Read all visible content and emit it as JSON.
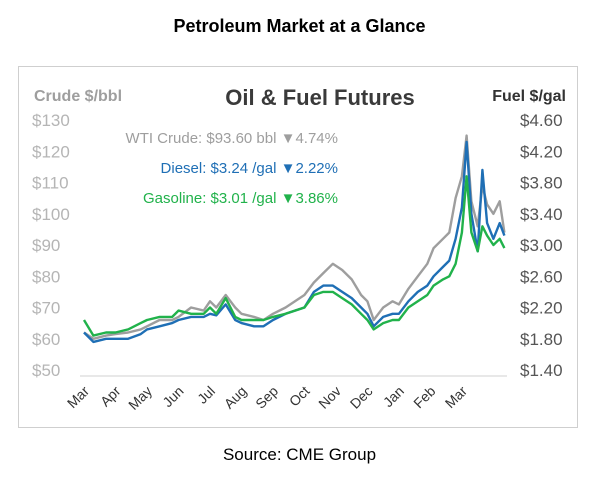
{
  "page_title": "Petroleum Market at a Glance",
  "source": "Source: CME Group",
  "chart_data": {
    "type": "line",
    "title": "Oil & Fuel Futures",
    "left_axis_label": "Crude $/bbl",
    "right_axis_label": "Fuel $/gal",
    "left_axis": {
      "min": 50,
      "max": 130,
      "ticks": [
        50,
        60,
        70,
        80,
        90,
        100,
        110,
        120,
        130
      ],
      "tick_labels": [
        "$50",
        "$60",
        "$70",
        "$80",
        "$90",
        "$100",
        "$110",
        "$120",
        "$130"
      ]
    },
    "right_axis": {
      "min": 1.4,
      "max": 4.6,
      "ticks": [
        1.4,
        1.8,
        2.2,
        2.6,
        3.0,
        3.4,
        3.8,
        4.2,
        4.6
      ],
      "tick_labels": [
        "$1.40",
        "$1.80",
        "$2.20",
        "$2.60",
        "$3.00",
        "$3.40",
        "$3.80",
        "$4.20",
        "$4.60"
      ]
    },
    "months": [
      "Mar",
      "Apr",
      "May",
      "Jun",
      "Jul",
      "Aug",
      "Sep",
      "Oct",
      "Nov",
      "Dec",
      "Jan",
      "Feb",
      "Mar"
    ],
    "grid": false,
    "legend": [
      {
        "series": "WTI Crude",
        "text": "WTI Crude: $93.60 bbl",
        "change": "▼4.74%",
        "color": "#9e9e9e"
      },
      {
        "series": "Diesel",
        "text": "Diesel:  $3.24 /gal",
        "change": "▼2.22%",
        "color": "#1f6fb5"
      },
      {
        "series": "Gasoline",
        "text": "Gasoline:  $3.01 /gal",
        "change": "▼3.86%",
        "color": "#21b24b"
      }
    ],
    "series": [
      {
        "name": "WTI Crude",
        "axis": "left",
        "color": "#9e9e9e",
        "points": [
          [
            0,
            62
          ],
          [
            0.3,
            60
          ],
          [
            0.7,
            61
          ],
          [
            1,
            61.5
          ],
          [
            1.4,
            62
          ],
          [
            1.8,
            63
          ],
          [
            2,
            64
          ],
          [
            2.4,
            66
          ],
          [
            2.8,
            66
          ],
          [
            3,
            67
          ],
          [
            3.4,
            70
          ],
          [
            3.8,
            69
          ],
          [
            4,
            72
          ],
          [
            4.2,
            70
          ],
          [
            4.5,
            74
          ],
          [
            4.8,
            70
          ],
          [
            5,
            68
          ],
          [
            5.4,
            67
          ],
          [
            5.7,
            66
          ],
          [
            6,
            68
          ],
          [
            6.4,
            70
          ],
          [
            6.7,
            72
          ],
          [
            7,
            74
          ],
          [
            7.3,
            78
          ],
          [
            7.6,
            81
          ],
          [
            7.9,
            84
          ],
          [
            8.2,
            82
          ],
          [
            8.5,
            79
          ],
          [
            8.8,
            74
          ],
          [
            9,
            72
          ],
          [
            9.2,
            66
          ],
          [
            9.5,
            70
          ],
          [
            9.8,
            72
          ],
          [
            10,
            71
          ],
          [
            10.3,
            76
          ],
          [
            10.6,
            80
          ],
          [
            10.9,
            84
          ],
          [
            11.1,
            89
          ],
          [
            11.4,
            92
          ],
          [
            11.6,
            94
          ],
          [
            11.8,
            105
          ],
          [
            12,
            112
          ],
          [
            12.15,
            125
          ],
          [
            12.3,
            104
          ],
          [
            12.5,
            96
          ],
          [
            12.65,
            109
          ],
          [
            12.8,
            103
          ],
          [
            13,
            100
          ],
          [
            13.2,
            104
          ],
          [
            13.35,
            94
          ]
        ]
      },
      {
        "name": "Diesel",
        "axis": "left",
        "color": "#1f6fb5",
        "points": [
          [
            0,
            62
          ],
          [
            0.3,
            59
          ],
          [
            0.7,
            60
          ],
          [
            1,
            60
          ],
          [
            1.4,
            60
          ],
          [
            1.8,
            61.5
          ],
          [
            2,
            63
          ],
          [
            2.4,
            64
          ],
          [
            2.8,
            65
          ],
          [
            3,
            66
          ],
          [
            3.4,
            67
          ],
          [
            3.8,
            67
          ],
          [
            4,
            68
          ],
          [
            4.2,
            67.5
          ],
          [
            4.5,
            71
          ],
          [
            4.8,
            66
          ],
          [
            5,
            65
          ],
          [
            5.4,
            64
          ],
          [
            5.7,
            64
          ],
          [
            6,
            66
          ],
          [
            6.4,
            68
          ],
          [
            6.7,
            69
          ],
          [
            7,
            70
          ],
          [
            7.3,
            75
          ],
          [
            7.6,
            77
          ],
          [
            7.9,
            77
          ],
          [
            8.2,
            75
          ],
          [
            8.5,
            73
          ],
          [
            8.8,
            70
          ],
          [
            9,
            68
          ],
          [
            9.2,
            64
          ],
          [
            9.5,
            67
          ],
          [
            9.8,
            68
          ],
          [
            10,
            68
          ],
          [
            10.3,
            72
          ],
          [
            10.6,
            75
          ],
          [
            10.9,
            77
          ],
          [
            11.1,
            80
          ],
          [
            11.4,
            83
          ],
          [
            11.6,
            85
          ],
          [
            11.8,
            92
          ],
          [
            12,
            102
          ],
          [
            12.15,
            123
          ],
          [
            12.3,
            100
          ],
          [
            12.5,
            88
          ],
          [
            12.65,
            114
          ],
          [
            12.8,
            97
          ],
          [
            13,
            92
          ],
          [
            13.2,
            97
          ],
          [
            13.35,
            93
          ]
        ]
      },
      {
        "name": "Gasoline",
        "axis": "left",
        "color": "#21b24b",
        "points": [
          [
            0,
            66
          ],
          [
            0.3,
            61
          ],
          [
            0.7,
            62
          ],
          [
            1,
            62
          ],
          [
            1.4,
            63
          ],
          [
            1.8,
            65
          ],
          [
            2,
            66
          ],
          [
            2.4,
            67
          ],
          [
            2.8,
            67
          ],
          [
            3,
            69
          ],
          [
            3.4,
            68
          ],
          [
            3.8,
            68
          ],
          [
            4,
            70
          ],
          [
            4.2,
            68
          ],
          [
            4.5,
            73
          ],
          [
            4.8,
            67
          ],
          [
            5,
            66
          ],
          [
            5.4,
            66
          ],
          [
            5.7,
            66
          ],
          [
            6,
            67
          ],
          [
            6.4,
            68
          ],
          [
            6.7,
            69
          ],
          [
            7,
            70
          ],
          [
            7.3,
            74
          ],
          [
            7.6,
            75
          ],
          [
            7.9,
            75
          ],
          [
            8.2,
            73
          ],
          [
            8.5,
            71
          ],
          [
            8.8,
            68
          ],
          [
            9,
            66
          ],
          [
            9.2,
            63
          ],
          [
            9.5,
            65
          ],
          [
            9.8,
            66
          ],
          [
            10,
            66
          ],
          [
            10.3,
            70
          ],
          [
            10.6,
            72
          ],
          [
            10.9,
            74
          ],
          [
            11.1,
            77
          ],
          [
            11.4,
            79
          ],
          [
            11.6,
            80
          ],
          [
            11.8,
            84
          ],
          [
            12,
            94
          ],
          [
            12.15,
            112
          ],
          [
            12.3,
            94
          ],
          [
            12.5,
            88
          ],
          [
            12.65,
            96
          ],
          [
            12.8,
            93
          ],
          [
            13,
            90
          ],
          [
            13.2,
            92
          ],
          [
            13.35,
            89
          ]
        ]
      }
    ]
  }
}
